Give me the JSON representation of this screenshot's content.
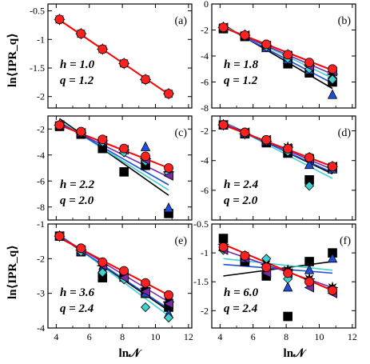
{
  "figure": {
    "ylabel": "ln⟨IPR_q⟩",
    "xlabel": "ln𝒩",
    "x_ticks": [
      "4",
      "6",
      "8",
      "10",
      "12"
    ]
  },
  "chart_data": [
    {
      "type": "scatter",
      "panel": "(a)",
      "annotation": [
        "h = 1.0",
        "q = 1.2"
      ],
      "xlim": [
        3.5,
        12.2
      ],
      "ylim": [
        -2.2,
        -0.38
      ],
      "yticks": [
        -0.5,
        -1,
        -1.5,
        -2
      ],
      "ytick_labels": [
        "-0.5",
        "-1",
        "-1.5",
        "-2"
      ],
      "x": [
        4.2,
        5.5,
        6.8,
        8.1,
        9.4,
        10.8
      ],
      "series": [
        {
          "marker": "star",
          "color": "#000000",
          "values": [
            -0.65,
            -0.9,
            -1.17,
            -1.42,
            -1.7,
            -1.95
          ]
        },
        {
          "marker": "circle",
          "color": "#ff2020",
          "values": [
            -0.65,
            -0.9,
            -1.17,
            -1.42,
            -1.7,
            -1.95
          ]
        }
      ],
      "fits": [
        {
          "color": "#ff0000",
          "x": [
            4.2,
            10.8
          ],
          "y": [
            -0.66,
            -1.96
          ]
        }
      ]
    },
    {
      "type": "scatter",
      "panel": "(b)",
      "annotation": [
        "h = 1.8",
        "q = 1.2"
      ],
      "xlim": [
        3.5,
        12.2
      ],
      "ylim": [
        -8,
        0
      ],
      "yticks": [
        0,
        -2,
        -4,
        -6,
        -8
      ],
      "ytick_labels": [
        "0",
        "-2",
        "-4",
        "-6",
        "-8"
      ],
      "x": [
        4.2,
        5.5,
        6.8,
        8.1,
        9.4,
        10.8
      ],
      "series": [
        {
          "marker": "star",
          "color": "#000000",
          "values": [
            -1.8,
            -2.4,
            -3.2,
            -3.9,
            -4.7,
            -5.4
          ]
        },
        {
          "marker": "square",
          "color": "#000000",
          "values": [
            -1.9,
            -2.5,
            -3.3,
            -4.6,
            -5.3,
            -6.0
          ]
        },
        {
          "marker": "triangle",
          "color": "#1f4fd8",
          "values": [
            -1.8,
            -2.4,
            -3.4,
            -4.3,
            -5.1,
            -7.0
          ]
        },
        {
          "marker": "diamond",
          "color": "#40d0d0",
          "values": [
            -1.8,
            -2.5,
            -3.3,
            -4.2,
            -5.0,
            -5.8
          ]
        },
        {
          "marker": "tri-left",
          "color": "#7a2aa8",
          "values": [
            -1.8,
            -2.4,
            -3.2,
            -4.0,
            -4.8,
            -5.2
          ]
        },
        {
          "marker": "circle",
          "color": "#ff2020",
          "values": [
            -1.8,
            -2.4,
            -3.1,
            -3.9,
            -4.5,
            -5.0
          ]
        }
      ],
      "fits": [
        {
          "color": "#000000",
          "x": [
            4.2,
            10.8
          ],
          "y": [
            -1.6,
            -6.5
          ]
        },
        {
          "color": "#1f4fd8",
          "x": [
            4.2,
            10.8
          ],
          "y": [
            -1.7,
            -6.1
          ]
        },
        {
          "color": "#40d0d0",
          "x": [
            4.2,
            10.8
          ],
          "y": [
            -1.7,
            -5.7
          ]
        },
        {
          "color": "#7a2aa8",
          "x": [
            4.2,
            10.8
          ],
          "y": [
            -1.8,
            -5.4
          ]
        },
        {
          "color": "#ff0000",
          "x": [
            4.2,
            10.8
          ],
          "y": [
            -1.8,
            -5.1
          ]
        }
      ]
    },
    {
      "type": "scatter",
      "panel": "(c)",
      "annotation": [
        "h = 2.2",
        "q = 2.0"
      ],
      "xlim": [
        3.5,
        12.2
      ],
      "ylim": [
        -9,
        -1
      ],
      "yticks": [
        -2,
        -4,
        -6,
        -8
      ],
      "ytick_labels": [
        "-2",
        "-4",
        "-6",
        "-8"
      ],
      "x": [
        4.2,
        5.5,
        6.8,
        8.1,
        9.4,
        10.8
      ],
      "series": [
        {
          "marker": "star",
          "color": "#000000",
          "values": [
            -1.7,
            -2.3,
            -2.9,
            -3.6,
            -4.3,
            -5.3
          ]
        },
        {
          "marker": "square",
          "color": "#000000",
          "values": [
            -1.8,
            -2.4,
            -3.5,
            -5.3,
            -4.8,
            -8.5
          ]
        },
        {
          "marker": "triangle",
          "color": "#1f4fd8",
          "values": [
            -1.7,
            -2.3,
            -3.0,
            -3.6,
            -3.4,
            -8.1
          ]
        },
        {
          "marker": "diamond",
          "color": "#40d0d0",
          "values": [
            -1.7,
            -2.3,
            -3.0,
            -3.8,
            -4.5,
            -5.4
          ]
        },
        {
          "marker": "tri-left",
          "color": "#7a2aa8",
          "values": [
            -1.7,
            -2.3,
            -2.9,
            -3.6,
            -4.4,
            -5.6
          ]
        },
        {
          "marker": "circle",
          "color": "#ff2020",
          "values": [
            -1.7,
            -2.2,
            -2.8,
            -3.5,
            -4.1,
            -5.0
          ]
        }
      ],
      "fits": [
        {
          "color": "#000000",
          "x": [
            4.2,
            10.8
          ],
          "y": [
            -1.2,
            -7.1
          ]
        },
        {
          "color": "#40d0d0",
          "x": [
            4.2,
            10.8
          ],
          "y": [
            -1.4,
            -6.7
          ]
        },
        {
          "color": "#1f4fd8",
          "x": [
            4.2,
            10.8
          ],
          "y": [
            -1.5,
            -6.3
          ]
        },
        {
          "color": "#7a2aa8",
          "x": [
            4.2,
            10.8
          ],
          "y": [
            -1.6,
            -5.7
          ]
        },
        {
          "color": "#ff0000",
          "x": [
            4.2,
            10.8
          ],
          "y": [
            -1.7,
            -5.0
          ]
        }
      ]
    },
    {
      "type": "scatter",
      "panel": "(d)",
      "annotation": [
        "h = 2.4",
        "q = 2.0"
      ],
      "xlim": [
        3.5,
        12.2
      ],
      "ylim": [
        -8,
        -1
      ],
      "yticks": [
        -2,
        -4,
        -6
      ],
      "ytick_labels": [
        "-2",
        "-4",
        "-6"
      ],
      "x": [
        4.2,
        5.5,
        6.8,
        8.1,
        9.4,
        10.8
      ],
      "series": [
        {
          "marker": "star",
          "color": "#000000",
          "values": [
            -1.6,
            -2.2,
            -2.7,
            -3.1,
            -3.8,
            -4.4
          ]
        },
        {
          "marker": "square",
          "color": "#000000",
          "values": [
            -1.6,
            -2.2,
            -2.8,
            -3.5,
            -5.3,
            -4.5
          ]
        },
        {
          "marker": "triangle",
          "color": "#1f4fd8",
          "values": [
            -1.6,
            -2.2,
            -2.7,
            -3.3,
            -4.3,
            -4.6
          ]
        },
        {
          "marker": "diamond",
          "color": "#40d0d0",
          "values": [
            -1.6,
            -2.2,
            -2.7,
            -3.4,
            -5.7,
            -4.5
          ]
        },
        {
          "marker": "tri-left",
          "color": "#7a2aa8",
          "values": [
            -1.6,
            -2.1,
            -2.6,
            -3.2,
            -3.9,
            -4.4
          ]
        },
        {
          "marker": "circle",
          "color": "#ff2020",
          "values": [
            -1.6,
            -2.1,
            -2.6,
            -3.2,
            -3.8,
            -4.4
          ]
        }
      ],
      "fits": [
        {
          "color": "#000000",
          "x": [
            4.2,
            10.8
          ],
          "y": [
            -1.4,
            -4.9
          ]
        },
        {
          "color": "#40d0d0",
          "x": [
            4.2,
            10.8
          ],
          "y": [
            -1.4,
            -5.2
          ]
        },
        {
          "color": "#1f4fd8",
          "x": [
            4.2,
            10.8
          ],
          "y": [
            -1.5,
            -4.8
          ]
        },
        {
          "color": "#7a2aa8",
          "x": [
            4.2,
            10.8
          ],
          "y": [
            -1.5,
            -4.6
          ]
        },
        {
          "color": "#ff0000",
          "x": [
            4.2,
            10.8
          ],
          "y": [
            -1.6,
            -4.4
          ]
        }
      ]
    },
    {
      "type": "scatter",
      "panel": "(e)",
      "annotation": [
        "h = 3.6",
        "q = 2.4"
      ],
      "xlim": [
        3.5,
        12.2
      ],
      "ylim": [
        -4,
        -1
      ],
      "yticks": [
        -1,
        -2,
        -3,
        -4
      ],
      "ytick_labels": [
        "-1",
        "-2",
        "-3",
        "-4"
      ],
      "x": [
        4.2,
        5.5,
        6.8,
        8.1,
        9.4,
        10.8
      ],
      "series": [
        {
          "marker": "star",
          "color": "#000000",
          "values": [
            -1.35,
            -1.75,
            -2.2,
            -2.55,
            -2.85,
            -3.25
          ]
        },
        {
          "marker": "square",
          "color": "#000000",
          "values": [
            -1.35,
            -1.8,
            -2.55,
            -2.5,
            -3.0,
            -3.4
          ]
        },
        {
          "marker": "triangle",
          "color": "#1f4fd8",
          "values": [
            -1.35,
            -1.8,
            -2.3,
            -2.55,
            -3.0,
            -3.6
          ]
        },
        {
          "marker": "diamond",
          "color": "#40d0d0",
          "values": [
            -1.35,
            -1.8,
            -2.4,
            -2.6,
            -3.4,
            -3.7
          ]
        },
        {
          "marker": "tri-left",
          "color": "#7a2aa8",
          "values": [
            -1.35,
            -1.75,
            -2.2,
            -2.55,
            -2.95,
            -3.3
          ]
        },
        {
          "marker": "circle",
          "color": "#ff2020",
          "values": [
            -1.35,
            -1.7,
            -2.1,
            -2.35,
            -2.7,
            -3.05
          ]
        }
      ],
      "fits": [
        {
          "color": "#000000",
          "x": [
            4.2,
            10.8
          ],
          "y": [
            -1.35,
            -3.5
          ]
        },
        {
          "color": "#40d0d0",
          "x": [
            4.2,
            10.8
          ],
          "y": [
            -1.3,
            -3.65
          ]
        },
        {
          "color": "#1f4fd8",
          "x": [
            4.2,
            10.8
          ],
          "y": [
            -1.35,
            -3.45
          ]
        },
        {
          "color": "#7a2aa8",
          "x": [
            4.2,
            10.8
          ],
          "y": [
            -1.35,
            -3.25
          ]
        },
        {
          "color": "#ff0000",
          "x": [
            4.2,
            10.8
          ],
          "y": [
            -1.4,
            -3.05
          ]
        }
      ]
    },
    {
      "type": "scatter",
      "panel": "(f)",
      "annotation": [
        "h = 6.0",
        "q = 2.4"
      ],
      "xlim": [
        3.5,
        12.2
      ],
      "ylim": [
        -2.3,
        -0.5
      ],
      "yticks": [
        -0.5,
        -1,
        -1.5,
        -2
      ],
      "ytick_labels": [
        "-0.5",
        "-1",
        "-1.5",
        "-2"
      ],
      "x": [
        4.2,
        5.5,
        6.8,
        8.1,
        9.4,
        10.8
      ],
      "series": [
        {
          "marker": "star",
          "color": "#000000",
          "values": [
            -0.85,
            -1.05,
            -1.2,
            -1.3,
            -1.45,
            -1.6
          ]
        },
        {
          "marker": "square",
          "color": "#000000",
          "values": [
            -0.75,
            -1.15,
            -1.4,
            -2.1,
            -1.15,
            -1.0
          ]
        },
        {
          "marker": "triangle",
          "color": "#1f4fd8",
          "values": [
            -0.9,
            -1.1,
            -1.2,
            -1.6,
            -1.3,
            -1.1
          ]
        },
        {
          "marker": "diamond",
          "color": "#40d0d0",
          "values": [
            -0.95,
            -1.05,
            -1.1,
            -1.45,
            -1.5,
            -1.65
          ]
        },
        {
          "marker": "tri-left",
          "color": "#7a2aa8",
          "values": [
            -0.95,
            -1.1,
            -1.35,
            -1.35,
            -1.6,
            -1.7
          ]
        },
        {
          "marker": "circle",
          "color": "#ff2020",
          "values": [
            -0.9,
            -1.05,
            -1.25,
            -1.35,
            -1.5,
            -1.65
          ]
        }
      ],
      "fits": [
        {
          "color": "#000000",
          "x": [
            4.2,
            10.8
          ],
          "y": [
            -1.4,
            -1.15
          ]
        },
        {
          "color": "#40d0d0",
          "x": [
            4.2,
            10.8
          ],
          "y": [
            -1.1,
            -1.3
          ]
        },
        {
          "color": "#1f4fd8",
          "x": [
            4.2,
            10.8
          ],
          "y": [
            -1.2,
            -1.35
          ]
        },
        {
          "color": "#7a2aa8",
          "x": [
            4.2,
            10.8
          ],
          "y": [
            -0.95,
            -1.6
          ]
        },
        {
          "color": "#ff0000",
          "x": [
            4.2,
            10.8
          ],
          "y": [
            -0.85,
            -1.65
          ]
        }
      ]
    }
  ]
}
